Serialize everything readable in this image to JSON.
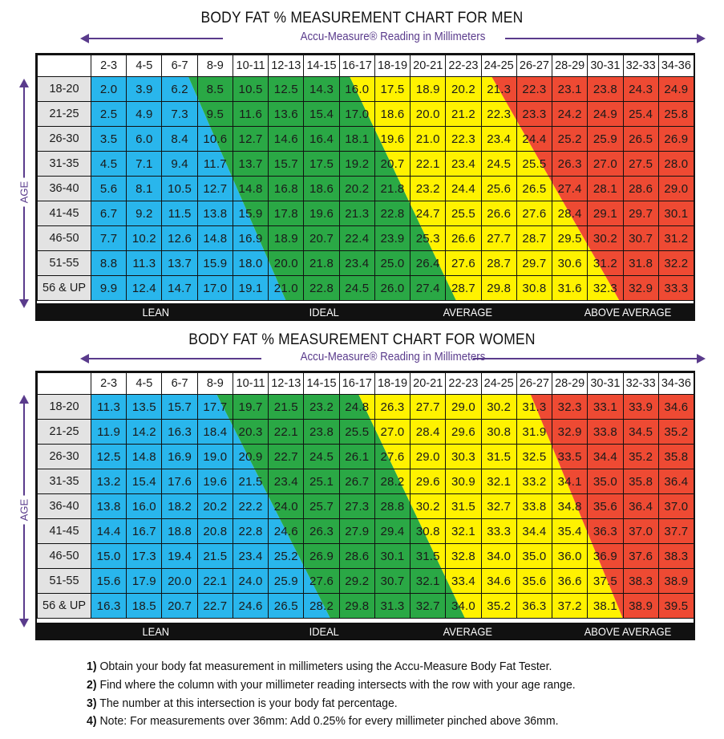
{
  "colors": {
    "lean": "#29b6ec",
    "ideal": "#2aa845",
    "average": "#fff200",
    "above_average": "#ee4a33",
    "accent": "#5a3b8c"
  },
  "column_headers": [
    "2-3",
    "4-5",
    "6-7",
    "8-9",
    "10-11",
    "12-13",
    "14-15",
    "16-17",
    "18-19",
    "20-21",
    "22-23",
    "24-25",
    "26-27",
    "28-29",
    "30-31",
    "32-33",
    "34-36"
  ],
  "band_labels": {
    "lean": "LEAN",
    "ideal": "IDEAL",
    "average": "AVERAGE",
    "above_average": "ABOVE AVERAGE"
  },
  "age_axis_label": "AGE",
  "men": {
    "title": "BODY FAT % MEASUREMENT CHART FOR MEN",
    "subtitle": "Accu-Measure® Reading in Millimeters",
    "ages": [
      "18-20",
      "21-25",
      "26-30",
      "31-35",
      "36-40",
      "41-45",
      "46-50",
      "51-55",
      "56 & UP"
    ],
    "values": [
      [
        "2.0",
        "3.9",
        "6.2",
        "8.5",
        "10.5",
        "12.5",
        "14.3",
        "16.0",
        "17.5",
        "18.9",
        "20.2",
        "21.3",
        "22.3",
        "23.1",
        "23.8",
        "24.3",
        "24.9"
      ],
      [
        "2.5",
        "4.9",
        "7.3",
        "9.5",
        "11.6",
        "13.6",
        "15.4",
        "17.0",
        "18.6",
        "20.0",
        "21.2",
        "22.3",
        "23.3",
        "24.2",
        "24.9",
        "25.4",
        "25.8"
      ],
      [
        "3.5",
        "6.0",
        "8.4",
        "10.6",
        "12.7",
        "14.6",
        "16.4",
        "18.1",
        "19.6",
        "21.0",
        "22.3",
        "23.4",
        "24.4",
        "25.2",
        "25.9",
        "26.5",
        "26.9"
      ],
      [
        "4.5",
        "7.1",
        "9.4",
        "11.7",
        "13.7",
        "15.7",
        "17.5",
        "19.2",
        "20.7",
        "22.1",
        "23.4",
        "24.5",
        "25.5",
        "26.3",
        "27.0",
        "27.5",
        "28.0"
      ],
      [
        "5.6",
        "8.1",
        "10.5",
        "12.7",
        "14.8",
        "16.8",
        "18.6",
        "20.2",
        "21.8",
        "23.2",
        "24.4",
        "25.6",
        "26.5",
        "27.4",
        "28.1",
        "28.6",
        "29.0"
      ],
      [
        "6.7",
        "9.2",
        "11.5",
        "13.8",
        "15.9",
        "17.8",
        "19.6",
        "21.3",
        "22.8",
        "24.7",
        "25.5",
        "26.6",
        "27.6",
        "28.4",
        "29.1",
        "29.7",
        "30.1"
      ],
      [
        "7.7",
        "10.2",
        "12.6",
        "14.8",
        "16.9",
        "18.9",
        "20.7",
        "22.4",
        "23.9",
        "25.3",
        "26.6",
        "27.7",
        "28.7",
        "29.5",
        "30.2",
        "30.7",
        "31.2"
      ],
      [
        "8.8",
        "11.3",
        "13.7",
        "15.9",
        "18.0",
        "20.0",
        "21.8",
        "23.4",
        "25.0",
        "26.4",
        "27.6",
        "28.7",
        "29.7",
        "30.6",
        "31.2",
        "31.8",
        "32.2"
      ],
      [
        "9.9",
        "12.4",
        "14.7",
        "17.0",
        "19.1",
        "21.0",
        "22.8",
        "24.5",
        "26.0",
        "27.4",
        "28.7",
        "29.8",
        "30.8",
        "31.6",
        "32.3",
        "32.9",
        "33.3"
      ]
    ]
  },
  "women": {
    "title": "BODY FAT % MEASUREMENT CHART FOR WOMEN",
    "subtitle": "Accu-Measure® Reading in Millimeters",
    "ages": [
      "18-20",
      "21-25",
      "26-30",
      "31-35",
      "36-40",
      "41-45",
      "46-50",
      "51-55",
      "56 & UP"
    ],
    "values": [
      [
        "11.3",
        "13.5",
        "15.7",
        "17.7",
        "19.7",
        "21.5",
        "23.2",
        "24.8",
        "26.3",
        "27.7",
        "29.0",
        "30.2",
        "31.3",
        "32.3",
        "33.1",
        "33.9",
        "34.6"
      ],
      [
        "11.9",
        "14.2",
        "16.3",
        "18.4",
        "20.3",
        "22.1",
        "23.8",
        "25.5",
        "27.0",
        "28.4",
        "29.6",
        "30.8",
        "31.9",
        "32.9",
        "33.8",
        "34.5",
        "35.2"
      ],
      [
        "12.5",
        "14.8",
        "16.9",
        "19.0",
        "20.9",
        "22.7",
        "24.5",
        "26.1",
        "27.6",
        "29.0",
        "30.3",
        "31.5",
        "32.5",
        "33.5",
        "34.4",
        "35.2",
        "35.8"
      ],
      [
        "13.2",
        "15.4",
        "17.6",
        "19.6",
        "21.5",
        "23.4",
        "25.1",
        "26.7",
        "28.2",
        "29.6",
        "30.9",
        "32.1",
        "33.2",
        "34.1",
        "35.0",
        "35.8",
        "36.4"
      ],
      [
        "13.8",
        "16.0",
        "18.2",
        "20.2",
        "22.2",
        "24.0",
        "25.7",
        "27.3",
        "28.8",
        "30.2",
        "31.5",
        "32.7",
        "33.8",
        "34.8",
        "35.6",
        "36.4",
        "37.0"
      ],
      [
        "14.4",
        "16.7",
        "18.8",
        "20.8",
        "22.8",
        "24.6",
        "26.3",
        "27.9",
        "29.4",
        "30.8",
        "32.1",
        "33.3",
        "34.4",
        "35.4",
        "36.3",
        "37.0",
        "37.7"
      ],
      [
        "15.0",
        "17.3",
        "19.4",
        "21.5",
        "23.4",
        "25.2",
        "26.9",
        "28.6",
        "30.1",
        "31.5",
        "32.8",
        "34.0",
        "35.0",
        "36.0",
        "36.9",
        "37.6",
        "38.3"
      ],
      [
        "15.6",
        "17.9",
        "20.0",
        "22.1",
        "24.0",
        "25.9",
        "27.6",
        "29.2",
        "30.7",
        "32.1",
        "33.4",
        "34.6",
        "35.6",
        "36.6",
        "37.5",
        "38.3",
        "38.9"
      ],
      [
        "16.3",
        "18.5",
        "20.7",
        "22.7",
        "24.6",
        "26.5",
        "28.2",
        "29.8",
        "31.3",
        "32.7",
        "34.0",
        "35.2",
        "36.3",
        "37.2",
        "38.1",
        "38.9",
        "39.5"
      ]
    ]
  },
  "notes": [
    {
      "num": "1)",
      "text": "Obtain your body fat measurement in millimeters using the Accu-Measure Body Fat Tester."
    },
    {
      "num": "2)",
      "text": "Find where the column with your millimeter reading intersects with the row with your age range."
    },
    {
      "num": "3)",
      "text": "The number at this intersection is your body fat percentage."
    },
    {
      "num": "4)",
      "text": "Note: For measurements over 36mm: Add 0.25% for every millimeter pinched above 36mm."
    }
  ]
}
